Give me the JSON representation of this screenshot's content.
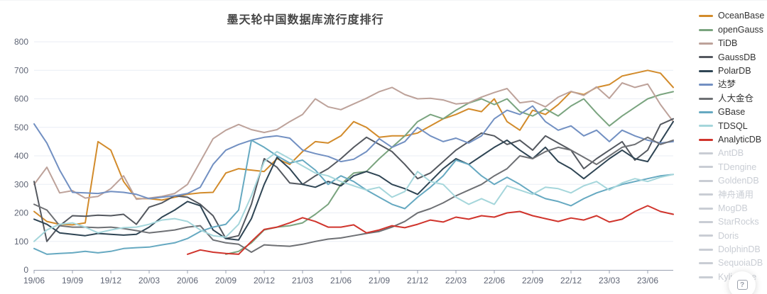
{
  "chart_data": {
    "type": "line",
    "title": "墨天轮中国数据库流行度排行",
    "legend_position": "right",
    "grid": true,
    "ylim": [
      0,
      800
    ],
    "y_ticks": [
      0,
      100,
      200,
      300,
      400,
      500,
      600,
      700,
      800
    ],
    "x_label_every": 3,
    "x": [
      "19/06",
      "19/07",
      "19/08",
      "19/09",
      "19/10",
      "19/11",
      "19/12",
      "20/01",
      "20/02",
      "20/03",
      "20/04",
      "20/05",
      "20/06",
      "20/07",
      "20/08",
      "20/09",
      "20/10",
      "20/11",
      "20/12",
      "21/01",
      "21/02",
      "21/03",
      "21/04",
      "21/05",
      "21/06",
      "21/07",
      "21/08",
      "21/09",
      "21/10",
      "21/11",
      "21/12",
      "22/01",
      "22/02",
      "22/03",
      "22/04",
      "22/05",
      "22/06",
      "22/07",
      "22/08",
      "22/09",
      "22/10",
      "22/11",
      "22/12",
      "23/01",
      "23/02",
      "23/03",
      "23/04",
      "23/05",
      "23/06",
      "23/07",
      "23/08"
    ],
    "series": [
      {
        "name": "OceanBase",
        "color": "#D28B2B",
        "values": [
          205,
          170,
          160,
          158,
          165,
          450,
          420,
          310,
          250,
          250,
          245,
          255,
          265,
          270,
          272,
          340,
          355,
          350,
          345,
          390,
          370,
          415,
          450,
          445,
          470,
          520,
          500,
          465,
          470,
          470,
          480,
          505,
          530,
          545,
          565,
          555,
          600,
          520,
          490,
          560,
          545,
          580,
          625,
          615,
          640,
          650,
          680,
          690,
          700,
          690,
          640
        ]
      },
      {
        "name": "openGauss",
        "color": "#7AA47F",
        "values": [
          null,
          null,
          null,
          null,
          null,
          null,
          null,
          null,
          null,
          null,
          null,
          null,
          null,
          null,
          null,
          55,
          65,
          95,
          140,
          150,
          155,
          165,
          195,
          230,
          300,
          340,
          345,
          390,
          430,
          470,
          520,
          545,
          530,
          560,
          585,
          600,
          580,
          600,
          555,
          540,
          565,
          540,
          575,
          600,
          550,
          505,
          540,
          570,
          600,
          615,
          625
        ]
      },
      {
        "name": "TiDB",
        "color": "#BDA29A",
        "values": [
          300,
          360,
          270,
          278,
          252,
          258,
          285,
          330,
          248,
          252,
          258,
          268,
          300,
          380,
          460,
          490,
          510,
          492,
          482,
          492,
          520,
          545,
          600,
          572,
          562,
          582,
          602,
          625,
          640,
          615,
          600,
          602,
          596,
          582,
          586,
          606,
          622,
          636,
          586,
          592,
          572,
          606,
          626,
          612,
          642,
          602,
          656,
          640,
          652,
          580,
          520
        ]
      },
      {
        "name": "GaussDB",
        "color": "#54585F",
        "values": [
          310,
          100,
          155,
          190,
          188,
          192,
          190,
          195,
          160,
          220,
          235,
          260,
          255,
          230,
          190,
          110,
          120,
          230,
          390,
          360,
          305,
          300,
          330,
          355,
          390,
          430,
          465,
          440,
          415,
          370,
          320,
          340,
          380,
          420,
          450,
          480,
          470,
          440,
          455,
          420,
          470,
          445,
          420,
          355,
          390,
          420,
          450,
          385,
          420,
          510,
          530
        ]
      },
      {
        "name": "PolarDB",
        "color": "#2F4554",
        "values": [
          178,
          160,
          130,
          125,
          120,
          128,
          125,
          122,
          125,
          150,
          185,
          210,
          240,
          225,
          140,
          110,
          105,
          180,
          300,
          395,
          355,
          300,
          290,
          310,
          295,
          330,
          345,
          330,
          300,
          285,
          265,
          310,
          355,
          390,
          370,
          400,
          430,
          455,
          420,
          390,
          430,
          380,
          355,
          320,
          355,
          390,
          420,
          390,
          380,
          450,
          520
        ]
      },
      {
        "name": "达梦",
        "color": "#7290C2",
        "values": [
          512,
          445,
          350,
          272,
          270,
          268,
          275,
          272,
          265,
          250,
          255,
          260,
          268,
          290,
          370,
          420,
          440,
          455,
          465,
          470,
          462,
          420,
          408,
          398,
          380,
          388,
          415,
          460,
          430,
          450,
          500,
          470,
          450,
          462,
          445,
          470,
          530,
          560,
          545,
          575,
          520,
          490,
          505,
          470,
          490,
          450,
          490,
          470,
          455,
          445,
          450
        ]
      },
      {
        "name": "人大金仓",
        "color": "#6E7074",
        "values": [
          230,
          210,
          155,
          150,
          150,
          148,
          150,
          145,
          138,
          130,
          135,
          140,
          150,
          155,
          105,
          95,
          90,
          62,
          88,
          85,
          83,
          90,
          100,
          108,
          112,
          120,
          128,
          135,
          150,
          170,
          200,
          215,
          235,
          260,
          280,
          300,
          330,
          355,
          400,
          390,
          415,
          430,
          420,
          395,
          370,
          400,
          430,
          440,
          465,
          440,
          455
        ]
      },
      {
        "name": "GBase",
        "color": "#66A9C1",
        "values": [
          75,
          55,
          58,
          60,
          65,
          60,
          65,
          75,
          78,
          80,
          88,
          95,
          110,
          135,
          150,
          160,
          210,
          455,
          430,
          400,
          375,
          385,
          350,
          300,
          330,
          310,
          280,
          255,
          230,
          215,
          255,
          290,
          330,
          385,
          370,
          330,
          300,
          325,
          300,
          270,
          250,
          240,
          225,
          250,
          270,
          285,
          300,
          310,
          320,
          330,
          335
        ]
      },
      {
        "name": "TDSQL",
        "color": "#A5D6DB",
        "values": [
          100,
          140,
          160,
          165,
          150,
          130,
          140,
          148,
          150,
          160,
          175,
          180,
          170,
          140,
          120,
          115,
          160,
          260,
          380,
          415,
          390,
          365,
          340,
          330,
          310,
          295,
          280,
          290,
          255,
          275,
          345,
          310,
          300,
          255,
          230,
          250,
          230,
          295,
          280,
          265,
          290,
          285,
          270,
          295,
          310,
          280,
          305,
          320,
          310,
          325,
          335
        ]
      },
      {
        "name": "AnalyticDB",
        "color": "#D0342C",
        "values": [
          null,
          null,
          null,
          null,
          null,
          null,
          null,
          null,
          null,
          null,
          null,
          null,
          55,
          70,
          62,
          58,
          55,
          100,
          142,
          150,
          165,
          183,
          170,
          150,
          150,
          158,
          130,
          140,
          155,
          148,
          160,
          175,
          168,
          185,
          178,
          190,
          185,
          200,
          205,
          190,
          180,
          170,
          182,
          175,
          190,
          168,
          178,
          205,
          225,
          205,
          195
        ]
      }
    ],
    "legend_inactive": [
      "AntDB",
      "TDengine",
      "GoldenDB",
      "神舟通用",
      "MogDB",
      "StarRocks",
      "Doris",
      "DolphinDB",
      "SequoiaDB",
      "Kyligence"
    ],
    "inactive_color": "#C9CDD4",
    "grid_color": "#E9EDF5",
    "axis_line_color": "#9AA1B1",
    "axis_label_color": "#5F6575"
  },
  "help_button": {
    "glyph": "?"
  }
}
